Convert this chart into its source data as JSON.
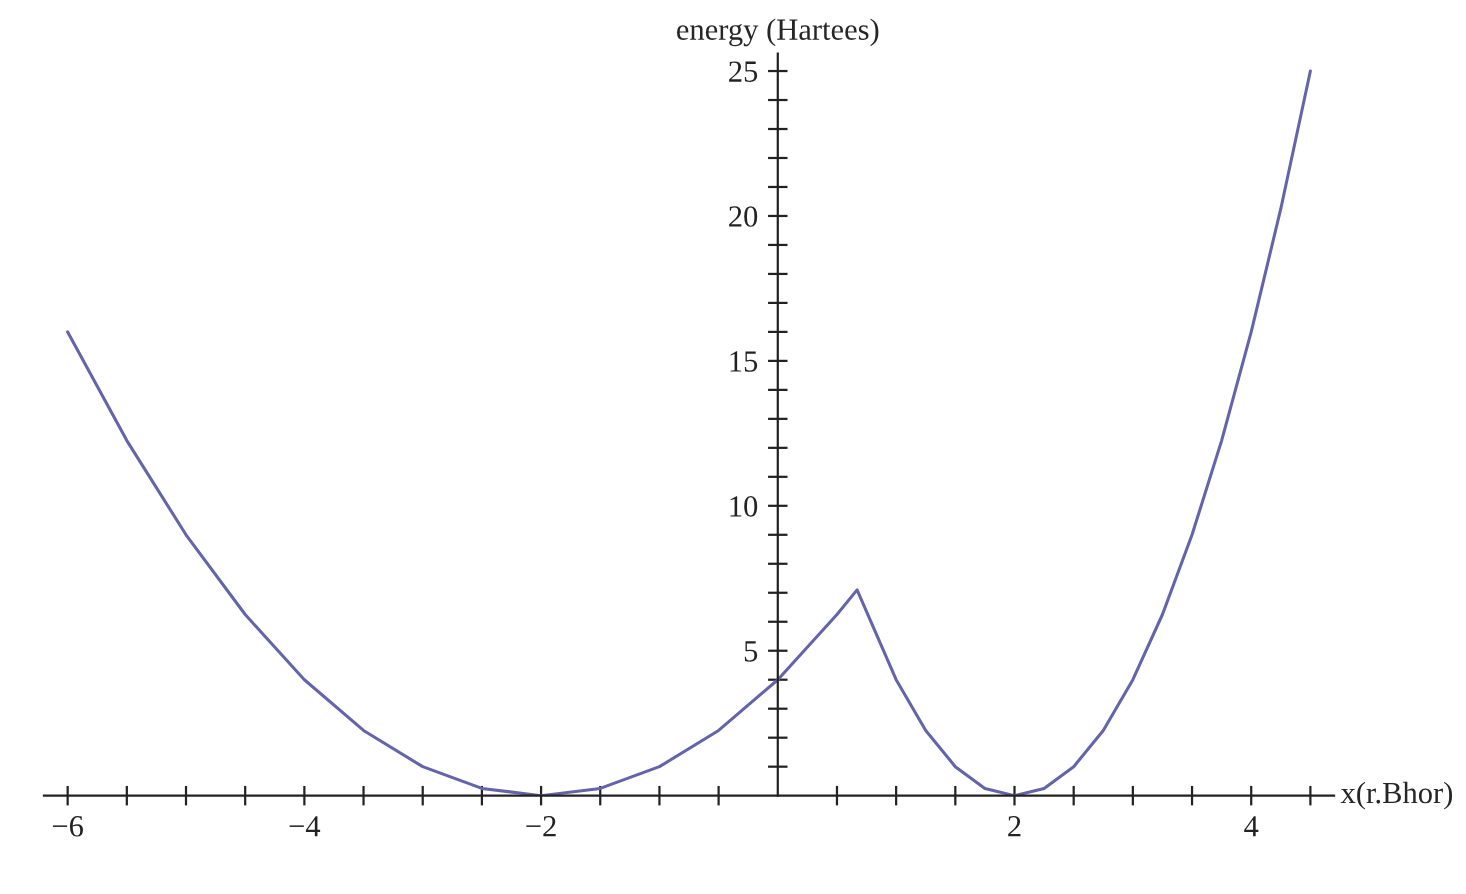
{
  "chart_data": {
    "type": "line",
    "xlabel": "x(r.Bhor)",
    "ylabel": "energy (Hartees)",
    "x": [
      -6,
      -5.5,
      -5,
      -4.5,
      -4,
      -3.5,
      -3,
      -2.5,
      -2,
      -1.5,
      -1,
      -0.5,
      0,
      0.5,
      0.67,
      1,
      1.25,
      1.5,
      1.75,
      2,
      2.25,
      2.5,
      2.75,
      3,
      3.25,
      3.5,
      3.75,
      4,
      4.25,
      4.5
    ],
    "series": [
      {
        "color": "#6464aa",
        "values": [
          16,
          12.25,
          9,
          6.25,
          4,
          2.25,
          1,
          0.25,
          0,
          0.25,
          1,
          2.25,
          4,
          6.25,
          7.1,
          4,
          2.25,
          1,
          0.25,
          0,
          0.25,
          1,
          2.25,
          4,
          6.25,
          9,
          12.25,
          16,
          20.25,
          25
        ]
      }
    ],
    "xlim": [
      -6.2,
      4.7
    ],
    "ylim": [
      0,
      25.6
    ],
    "xticks": [
      -6,
      {
        "value": -5.5,
        "label": null
      },
      {
        "value": -5,
        "label": null
      },
      {
        "value": -4.5,
        "label": null
      },
      -4,
      {
        "value": -3.5,
        "label": null
      },
      {
        "value": -3,
        "label": null
      },
      {
        "value": -2.5,
        "label": null
      },
      -2,
      {
        "value": -1.5,
        "label": null
      },
      {
        "value": -1,
        "label": null
      },
      {
        "value": -0.5,
        "label": null
      },
      {
        "value": 0.5,
        "label": null
      },
      {
        "value": 1,
        "label": null
      },
      {
        "value": 1.5,
        "label": null
      },
      2,
      {
        "value": 2.5,
        "label": null
      },
      {
        "value": 3,
        "label": null
      },
      {
        "value": 3.5,
        "label": null
      },
      4,
      {
        "value": 4.5,
        "label": null
      }
    ],
    "yticks": [
      {
        "value": 1,
        "label": null
      },
      {
        "value": 2,
        "label": null
      },
      {
        "value": 3,
        "label": null
      },
      {
        "value": 4,
        "label": null
      },
      5,
      {
        "value": 6,
        "label": null
      },
      {
        "value": 7,
        "label": null
      },
      {
        "value": 8,
        "label": null
      },
      {
        "value": 9,
        "label": null
      },
      10,
      {
        "value": 11,
        "label": null
      },
      {
        "value": 12,
        "label": null
      },
      {
        "value": 13,
        "label": null
      },
      {
        "value": 14,
        "label": null
      },
      15,
      {
        "value": 16,
        "label": null
      },
      {
        "value": 17,
        "label": null
      },
      {
        "value": 18,
        "label": null
      },
      {
        "value": 19,
        "label": null
      },
      20,
      {
        "value": 21,
        "label": null
      },
      {
        "value": 22,
        "label": null
      },
      {
        "value": 23,
        "label": null
      },
      {
        "value": 24,
        "label": null
      },
      25
    ],
    "line_style": "solid",
    "marker": "none",
    "grid": false,
    "legend": false
  }
}
